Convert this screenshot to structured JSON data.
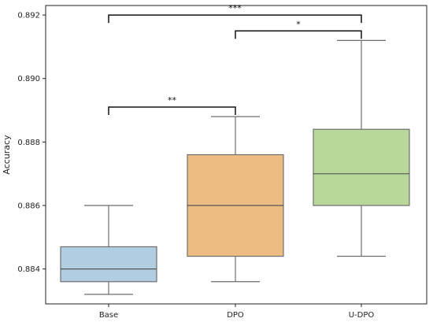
{
  "chart_data": {
    "type": "box",
    "title": "",
    "xlabel": "",
    "ylabel": "Accuracy",
    "ylim": [
      0.8829,
      0.8923
    ],
    "yticks": [
      0.884,
      0.886,
      0.888,
      0.89,
      0.892
    ],
    "ytick_labels": [
      "0.884",
      "0.886",
      "0.888",
      "0.890",
      "0.892"
    ],
    "grid": false,
    "categories": [
      "Base",
      "DPO",
      "U-DPO"
    ],
    "boxes": [
      {
        "category": "Base",
        "whisker_low": 0.8832,
        "q1": 0.8836,
        "median": 0.884,
        "q3": 0.8847,
        "whisker_high": 0.886,
        "color": "#b0cde1"
      },
      {
        "category": "DPO",
        "whisker_low": 0.8836,
        "q1": 0.8844,
        "median": 0.886,
        "q3": 0.8876,
        "whisker_high": 0.8888,
        "color": "#edbc82"
      },
      {
        "category": "U-DPO",
        "whisker_low": 0.8844,
        "q1": 0.886,
        "median": 0.887,
        "q3": 0.8884,
        "whisker_high": 0.8912,
        "color": "#b8d89a"
      }
    ],
    "significance": [
      {
        "from": "Base",
        "to": "DPO",
        "y": 0.8891,
        "label": "**"
      },
      {
        "from": "DPO",
        "to": "U-DPO",
        "y": 0.8915,
        "label": "*"
      },
      {
        "from": "Base",
        "to": "U-DPO",
        "y": 0.892,
        "label": "***"
      }
    ],
    "colors": {
      "line": "#6e6e6e",
      "median": "#555555",
      "bracket": "#111111",
      "axis": "#222222"
    }
  }
}
